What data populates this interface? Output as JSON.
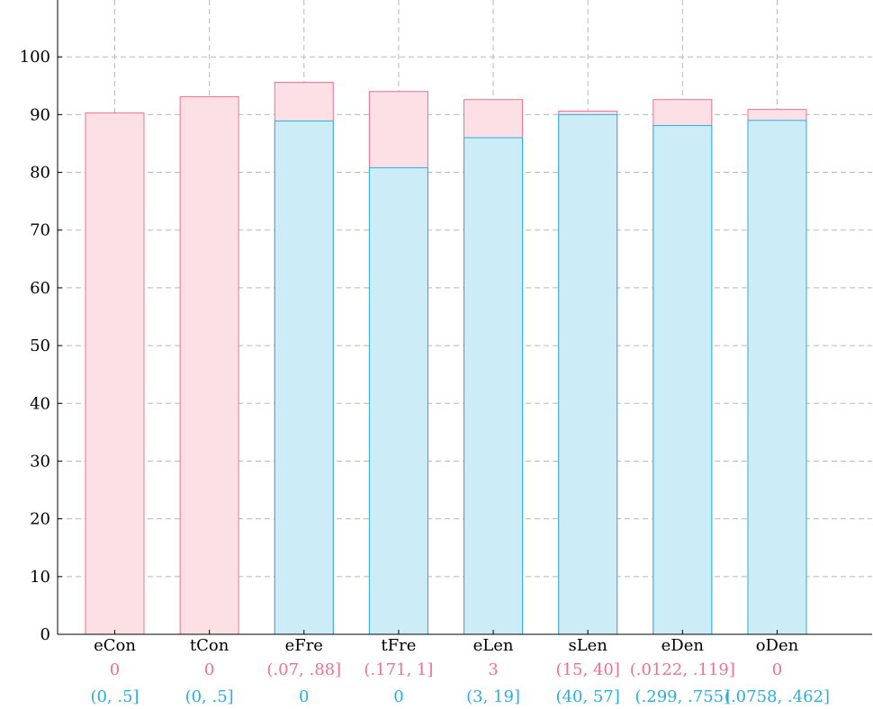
{
  "chart_data": {
    "type": "bar",
    "title": "",
    "xlabel": "",
    "ylabel": "",
    "ylim": [
      0,
      110
    ],
    "yticks": [
      0,
      10,
      20,
      30,
      40,
      50,
      60,
      70,
      80,
      90,
      100
    ],
    "grid": true,
    "categories": [
      "eCon",
      "tCon",
      "eFre",
      "tFre",
      "eLen",
      "sLen",
      "eDen",
      "oDen"
    ],
    "series": [
      {
        "values": [
          90.3,
          93.1,
          95.6,
          94.0,
          92.6,
          90.6,
          92.6,
          90.9
        ],
        "color": "#f0708f",
        "fill": "#fde0e6"
      },
      {
        "values": [
          0,
          0,
          88.9,
          80.8,
          86.0,
          90.0,
          88.1,
          89.0
        ],
        "color": "#29aee0",
        "fill": "#ccedf8"
      }
    ],
    "category_sublabels": [
      {
        "color": "#f0708f",
        "labels": [
          "0",
          "0",
          "(.07, .88]",
          "(.171, 1]",
          "3",
          "(15, 40]",
          "(.0122, .119]",
          "0"
        ]
      },
      {
        "color": "#29aee0",
        "labels": [
          "(0, .5]",
          "(0, .5]",
          "0",
          "0",
          "(3, 19]",
          "(40, 57]",
          "(.299, .755]",
          "(.0758, .462]"
        ]
      }
    ]
  }
}
